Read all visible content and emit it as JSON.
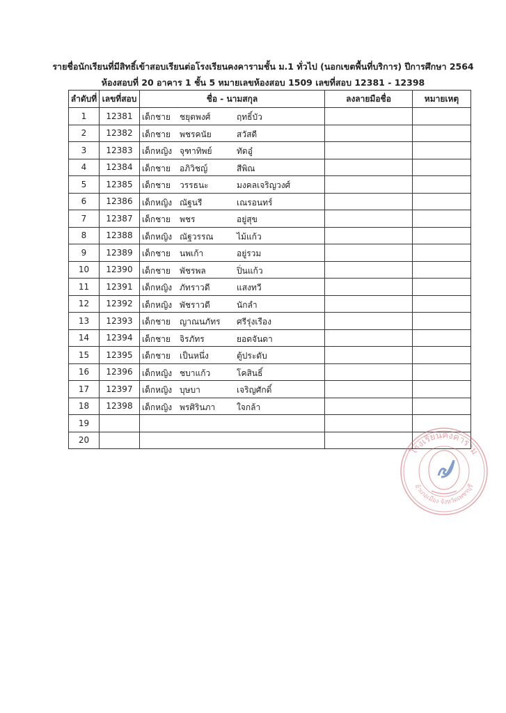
{
  "header": {
    "title": "รายชื่อนักเรียนที่มีสิทธิ์เข้าสอบเรียนต่อโรงเรียนคงคารามชั้น ม.1 ทั่วไป (นอกเขตพื้นที่บริการ) ปีการศึกษา 2564",
    "subtitle": "ห้องสอบที่ 20 อาคาร  1 ชั้น 5  หมายเลขห้องสอบ 1509  เลขที่สอบ 12381 - 12398"
  },
  "table": {
    "columns": [
      "ลำดับที่",
      "เลขที่สอบ",
      "ชื่อ - นามสกุล",
      "ลงลายมือชื่อ",
      "หมายเหตุ"
    ],
    "rows": [
      {
        "no": "1",
        "id": "12381",
        "prefix": "เด็กชาย",
        "first": "ชยุตพงศ์",
        "last": "ฤทธิ์บัว"
      },
      {
        "no": "2",
        "id": "12382",
        "prefix": "เด็กชาย",
        "first": "พชรคนัย",
        "last": "สวัสดี"
      },
      {
        "no": "3",
        "id": "12383",
        "prefix": "เด็กหญิง",
        "first": "จุฑาทิพย์",
        "last": "ทัดอู๋"
      },
      {
        "no": "4",
        "id": "12384",
        "prefix": "เด็กชาย",
        "first": "อภิวิชญ์",
        "last": "สีพิณ"
      },
      {
        "no": "5",
        "id": "12385",
        "prefix": "เด็กชาย",
        "first": "วรรธนะ",
        "last": "มงคลเจริญวงศ์"
      },
      {
        "no": "6",
        "id": "12386",
        "prefix": "เด็กหญิง",
        "first": "ณัฐนรี",
        "last": "เณรอนทร์"
      },
      {
        "no": "7",
        "id": "12387",
        "prefix": "เด็กชาย",
        "first": "พชร",
        "last": "อยู่สุข"
      },
      {
        "no": "8",
        "id": "12388",
        "prefix": "เด็กหญิง",
        "first": "ณัฐวรรณ",
        "last": "ไม้แก้ว"
      },
      {
        "no": "9",
        "id": "12389",
        "prefix": "เด็กชาย",
        "first": "นพเก้า",
        "last": "อยู่รวม"
      },
      {
        "no": "10",
        "id": "12390",
        "prefix": "เด็กชาย",
        "first": "พัชรพล",
        "last": "ปิ่นแก้ว"
      },
      {
        "no": "11",
        "id": "12391",
        "prefix": "เด็กหญิง",
        "first": "ภัทราวดี",
        "last": "แสงทวี"
      },
      {
        "no": "12",
        "id": "12392",
        "prefix": "เด็กหญิง",
        "first": "พัชราวดี",
        "last": "นักลำ"
      },
      {
        "no": "13",
        "id": "12393",
        "prefix": "เด็กชาย",
        "first": "ญาณนภัทร",
        "last": "ศรีรุ่งเรือง"
      },
      {
        "no": "14",
        "id": "12394",
        "prefix": "เด็กชาย",
        "first": "จิรภัทร",
        "last": "ยอดจันดา"
      },
      {
        "no": "15",
        "id": "12395",
        "prefix": "เด็กชาย",
        "first": "เป็นหนึ่ง",
        "last": "ตู้ประดับ"
      },
      {
        "no": "16",
        "id": "12396",
        "prefix": "เด็กหญิง",
        "first": "ชบาแก้ว",
        "last": "โคสินธิ์"
      },
      {
        "no": "17",
        "id": "12397",
        "prefix": "เด็กหญิง",
        "first": "บุษบา",
        "last": "เจริญศักดิ์"
      },
      {
        "no": "18",
        "id": "12398",
        "prefix": "เด็กหญิง",
        "first": "พรศิรินภา",
        "last": "ใจกล้า"
      },
      {
        "no": "19",
        "id": "",
        "prefix": "",
        "first": "",
        "last": ""
      },
      {
        "no": "20",
        "id": "",
        "prefix": "",
        "first": "",
        "last": ""
      }
    ]
  },
  "stamp": {
    "text_top": "โรงเรียนคงคาราม",
    "text_bottom": "อำเภอเมือง จังหวัดเพชรบุรี",
    "color": "#d0606a",
    "signature_color": "#1f4fa0"
  }
}
